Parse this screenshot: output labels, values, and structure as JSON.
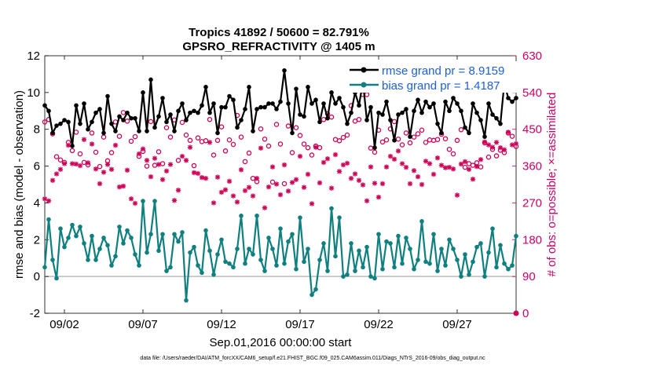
{
  "chart_data": {
    "type": "line",
    "title": "Tropics 41892 / 50600 = 82.791%",
    "subtitle": "GPSRO_REFRACTIVITY @ 1405 m",
    "xlabel": "Sep.01,2016 00:00:00 start",
    "ylabel": "rmse and bias (model - observation)",
    "y2label": "# of obs: o=possible; ×=assimilated",
    "footer": "data file: /Users/raeder/DAI/ATM_forcXX/CAM6_setup/f.e21.FHIST_BGC.f09_025.CAM6assim.011/Diags_NTrS_2016-09/obs_diag_output.nc",
    "xlim": [
      0.75,
      30.75
    ],
    "ylim": [
      -2,
      12
    ],
    "y2lim": [
      0,
      630
    ],
    "x_ticks": [
      2,
      7,
      12,
      17,
      22,
      27
    ],
    "x_tick_labels": [
      "09/02",
      "09/07",
      "09/12",
      "09/17",
      "09/22",
      "09/27"
    ],
    "y_ticks": [
      -2,
      0,
      2,
      4,
      6,
      8,
      10,
      12
    ],
    "y2_ticks": [
      0,
      90,
      180,
      270,
      360,
      450,
      540,
      630
    ],
    "zero_line": 0,
    "colors": {
      "rmse": "#000000",
      "bias": "#0f7f7f",
      "obs": "#cc0055",
      "zero": "#bbbbbb"
    },
    "legend": [
      {
        "name": "rmse grand pr = 8.9159"
      },
      {
        "name": "bias grand pr = 1.4187"
      }
    ],
    "x": [
      0.75,
      1.0,
      1.25,
      1.5,
      1.75,
      2.0,
      2.25,
      2.5,
      2.75,
      3.0,
      3.25,
      3.5,
      3.75,
      4.0,
      4.25,
      4.5,
      4.75,
      5.0,
      5.25,
      5.5,
      5.75,
      6.0,
      6.25,
      6.5,
      6.75,
      7.0,
      7.25,
      7.5,
      7.75,
      8.0,
      8.25,
      8.5,
      8.75,
      9.0,
      9.25,
      9.5,
      9.75,
      10.0,
      10.25,
      10.5,
      10.75,
      11.0,
      11.25,
      11.5,
      11.75,
      12.0,
      12.25,
      12.5,
      12.75,
      13.0,
      13.25,
      13.5,
      13.75,
      14.0,
      14.25,
      14.5,
      14.75,
      15.0,
      15.25,
      15.5,
      15.75,
      16.0,
      16.25,
      16.5,
      16.75,
      17.0,
      17.25,
      17.5,
      17.75,
      18.0,
      18.25,
      18.5,
      18.75,
      19.0,
      19.25,
      19.5,
      19.75,
      20.0,
      20.25,
      20.5,
      20.75,
      21.0,
      21.25,
      21.5,
      21.75,
      22.0,
      22.25,
      22.5,
      22.75,
      23.0,
      23.25,
      23.5,
      23.75,
      24.0,
      24.25,
      24.5,
      24.75,
      25.0,
      25.25,
      25.5,
      25.75,
      26.0,
      26.25,
      26.5,
      26.75,
      27.0,
      27.25,
      27.5,
      27.75,
      28.0,
      28.25,
      28.5,
      28.75,
      29.0,
      29.25,
      29.5,
      29.75,
      30.0,
      30.25,
      30.5,
      30.75
    ],
    "series": [
      {
        "name": "rmse",
        "axis": "left",
        "values": [
          9.3,
          9.0,
          7.8,
          8.2,
          8.3,
          8.5,
          8.4,
          7.1,
          9.3,
          8.3,
          9.4,
          8.0,
          8.4,
          8.9,
          9.1,
          7.8,
          9.8,
          8.3,
          7.9,
          8.7,
          8.5,
          8.9,
          8.6,
          8.6,
          7.9,
          10.0,
          7.9,
          10.7,
          8.1,
          8.7,
          9.7,
          8.4,
          8.8,
          7.9,
          9.0,
          9.4,
          8.5,
          8.9,
          9.0,
          8.9,
          9.3,
          10.3,
          8.9,
          9.4,
          7.8,
          9.2,
          9.2,
          9.8,
          9.6,
          8.1,
          8.5,
          9.1,
          10.3,
          7.9,
          9.1,
          9.2,
          9.2,
          9.4,
          9.4,
          9.1,
          9.5,
          11.2,
          9.4,
          7.8,
          10.2,
          8.8,
          8.7,
          10.3,
          9.4,
          9.6,
          8.4,
          9.4,
          8.6,
          10.0,
          9.4,
          9.7,
          9.2,
          8.3,
          8.9,
          10.0,
          9.3,
          10.6,
          8.5,
          9.2,
          7.0,
          8.9,
          8.8,
          9.5,
          8.5,
          7.4,
          8.8,
          8.9,
          9.1,
          7.6,
          9.0,
          9.6,
          8.9,
          9.5,
          9.2,
          9.4,
          8.3,
          7.8,
          9.5,
          9.0,
          9.7,
          9.4,
          9.0,
          8.1,
          7.8,
          9.4,
          8.9,
          8.5,
          7.6,
          9.4,
          8.8,
          8.6,
          8.3,
          10.5,
          9.7,
          9.5,
          9.7
        ]
      },
      {
        "name": "bias",
        "axis": "left",
        "values": [
          0.5,
          3.1,
          0.9,
          -0.1,
          2.6,
          1.6,
          2.1,
          2.8,
          2.2,
          2.7,
          1.8,
          0.9,
          2.2,
          0.9,
          1.5,
          2.1,
          1.7,
          0.6,
          1.1,
          2.7,
          1.8,
          2.5,
          2.1,
          1.2,
          0.6,
          4.1,
          1.3,
          2.3,
          4.1,
          1.4,
          2.3,
          0.3,
          0.5,
          2.3,
          1.9,
          2.4,
          -1.3,
          1.3,
          1.6,
          0.6,
          0.2,
          2.5,
          1.4,
          0.1,
          1.2,
          2.0,
          0.8,
          0.7,
          0.5,
          1.5,
          3.3,
          0.7,
          1.5,
          1.2,
          3.3,
          0.9,
          0.3,
          2.1,
          1.5,
          0.6,
          2.6,
          0.7,
          1.9,
          2.3,
          0.4,
          3.2,
          0.8,
          1.5,
          -1.0,
          -0.7,
          0.9,
          1.8,
          0.3,
          3.7,
          1.1,
          3.2,
          0.0,
          0.1,
          1.8,
          0.3,
          1.4,
          0.5,
          1.6,
          0.0,
          -0.1,
          2.3,
          0.4,
          1.9,
          1.8,
          0.5,
          2.2,
          0.7,
          2.1,
          1.5,
          0.4,
          0.9,
          3.0,
          0.8,
          0.7,
          2.3,
          0.3,
          1.5,
          0.6,
          2.0,
          1.5,
          0.9,
          0.0,
          1.2,
          0.1,
          0.8,
          1.6,
          1.8,
          0.0,
          1.3,
          2.6,
          0.5,
          1.7,
          0.7,
          0.4,
          0.6,
          2.2
        ]
      },
      {
        "name": "obs_possible",
        "axis": "right",
        "values": [
          468,
          474,
          439,
          383,
          375,
          369,
          418,
          398,
          443,
          390,
          369,
          363,
          441,
          394,
          359,
          431,
          373,
          393,
          468,
          433,
          491,
          470,
          421,
          432,
          384,
          396,
          360,
          469,
          362,
          395,
          366,
          454,
          431,
          473,
          374,
          467,
          436,
          423,
          361,
          429,
          420,
          422,
          474,
          387,
          423,
          456,
          397,
          424,
          413,
          484,
          431,
          371,
          392,
          330,
          322,
          451,
          426,
          409,
          321,
          462,
          414,
          317,
          458,
          393,
          454,
          435,
          414,
          405,
          387,
          409,
          405,
          474,
          488,
          480,
          425,
          422,
          430,
          436,
          508,
          470,
          474,
          535,
          535,
          404,
          394,
          448,
          419,
          424,
          451,
          469,
          426,
          412,
          441,
          417,
          431,
          439,
          448,
          418,
          424,
          423,
          425,
          438,
          427,
          401,
          390,
          423,
          449,
          357,
          366,
          362,
          368,
          358,
          417,
          382,
          401,
          385,
          399,
          393,
          441,
          433,
          408
        ]
      },
      {
        "name": "obs_assimilated",
        "axis": "right",
        "values": [
          280,
          275,
          325,
          341,
          352,
          366,
          411,
          366,
          365,
          361,
          425,
          368,
          414,
          353,
          317,
          345,
          364,
          352,
          411,
          309,
          311,
          350,
          280,
          269,
          390,
          402,
          374,
          334,
          379,
          364,
          327,
          348,
          364,
          276,
          301,
          384,
          374,
          406,
          344,
          342,
          332,
          330,
          418,
          270,
          333,
          296,
          302,
          323,
          287,
          272,
          351,
          300,
          308,
          287,
          330,
          404,
          258,
          309,
          358,
          316,
          290,
          363,
          299,
          320,
          327,
          384,
          308,
          340,
          268,
          406,
          319,
          369,
          378,
          306,
          388,
          347,
          363,
          367,
          330,
          341,
          325,
          314,
          275,
          358,
          318,
          284,
          317,
          358,
          384,
          377,
          397,
          366,
          357,
          317,
          349,
          334,
          315,
          372,
          366,
          340,
          380,
          362,
          356,
          357,
          353,
          289,
          365,
          371,
          352,
          328,
          359,
          376,
          419,
          412,
          406,
          418,
          405,
          400,
          443,
          412,
          415
        ]
      }
    ]
  }
}
